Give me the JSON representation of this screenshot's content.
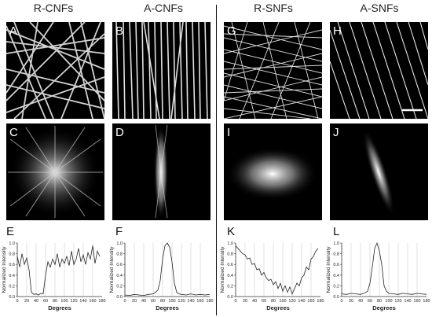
{
  "columns": [
    "R-CNFs",
    "A-CNFs",
    "R-SNFs",
    "A-SNFs"
  ],
  "panel_labels": [
    "A",
    "B",
    "G",
    "H",
    "C",
    "D",
    "I",
    "J",
    "E",
    "F",
    "K",
    "L"
  ],
  "axis": {
    "ylabel": "Normalized Intensity",
    "xlabel": "Degrees",
    "yticks": [
      "0.0",
      "0.2",
      "0.4",
      "0.6",
      "0.8",
      "1.0"
    ],
    "xticks": [
      "0",
      "20",
      "40",
      "60",
      "80",
      "100",
      "120",
      "140",
      "160",
      "180"
    ]
  },
  "chart_data": [
    {
      "type": "line",
      "panel": "E",
      "xlabel": "Degrees",
      "ylabel": "Normalized Intensity",
      "xlim": [
        0,
        180
      ],
      "ylim": [
        0,
        1
      ],
      "x": [
        0,
        5,
        10,
        15,
        20,
        25,
        30,
        35,
        40,
        45,
        50,
        55,
        60,
        65,
        70,
        75,
        80,
        85,
        90,
        95,
        100,
        105,
        110,
        115,
        120,
        125,
        130,
        135,
        140,
        145,
        150,
        155,
        160,
        165,
        170,
        175
      ],
      "y": [
        0.75,
        0.55,
        0.8,
        0.6,
        0.72,
        0.5,
        0.08,
        0.04,
        0.05,
        0.03,
        0.06,
        0.05,
        0.4,
        0.65,
        0.55,
        0.7,
        0.6,
        0.8,
        0.55,
        0.7,
        0.62,
        0.75,
        0.58,
        0.85,
        0.6,
        0.7,
        0.9,
        0.65,
        0.78,
        0.6,
        0.82,
        0.7,
        0.95,
        0.62,
        0.85,
        0.75
      ]
    },
    {
      "type": "line",
      "panel": "F",
      "xlabel": "Degrees",
      "ylabel": "Normalized Intensity",
      "xlim": [
        0,
        180
      ],
      "ylim": [
        0,
        1
      ],
      "x": [
        0,
        10,
        20,
        30,
        40,
        50,
        60,
        65,
        70,
        75,
        80,
        85,
        90,
        95,
        100,
        105,
        110,
        115,
        120,
        130,
        140,
        150,
        160,
        170,
        180
      ],
      "y": [
        0.03,
        0.02,
        0.04,
        0.03,
        0.02,
        0.04,
        0.05,
        0.08,
        0.12,
        0.3,
        0.7,
        0.95,
        1.0,
        0.92,
        0.65,
        0.25,
        0.08,
        0.05,
        0.04,
        0.03,
        0.05,
        0.03,
        0.04,
        0.03,
        0.04
      ]
    },
    {
      "type": "line",
      "panel": "K",
      "xlabel": "Degrees",
      "ylabel": "Normalized Intensity",
      "xlim": [
        0,
        180
      ],
      "ylim": [
        0,
        1
      ],
      "x": [
        0,
        5,
        10,
        15,
        20,
        25,
        30,
        35,
        40,
        45,
        50,
        55,
        60,
        65,
        70,
        75,
        80,
        85,
        90,
        95,
        100,
        105,
        110,
        115,
        120,
        125,
        130,
        135,
        140,
        145,
        150,
        155,
        160,
        165,
        170,
        175
      ],
      "y": [
        0.95,
        0.9,
        0.85,
        0.8,
        0.78,
        0.7,
        0.72,
        0.6,
        0.62,
        0.5,
        0.52,
        0.4,
        0.45,
        0.35,
        0.3,
        0.32,
        0.22,
        0.28,
        0.15,
        0.25,
        0.1,
        0.2,
        0.08,
        0.18,
        0.05,
        0.15,
        0.25,
        0.2,
        0.35,
        0.4,
        0.55,
        0.5,
        0.7,
        0.75,
        0.85,
        0.9
      ]
    },
    {
      "type": "line",
      "panel": "L",
      "xlabel": "Degrees",
      "ylabel": "Normalized Intensity",
      "xlim": [
        0,
        180
      ],
      "ylim": [
        0,
        1
      ],
      "x": [
        0,
        10,
        20,
        30,
        40,
        50,
        55,
        60,
        65,
        70,
        75,
        80,
        85,
        90,
        95,
        100,
        110,
        120,
        130,
        140,
        150,
        160,
        170,
        180
      ],
      "y": [
        0.05,
        0.04,
        0.06,
        0.05,
        0.04,
        0.07,
        0.1,
        0.25,
        0.55,
        0.9,
        1.0,
        0.85,
        0.6,
        0.2,
        0.1,
        0.06,
        0.05,
        0.04,
        0.06,
        0.05,
        0.04,
        0.06,
        0.05,
        0.04
      ]
    }
  ]
}
